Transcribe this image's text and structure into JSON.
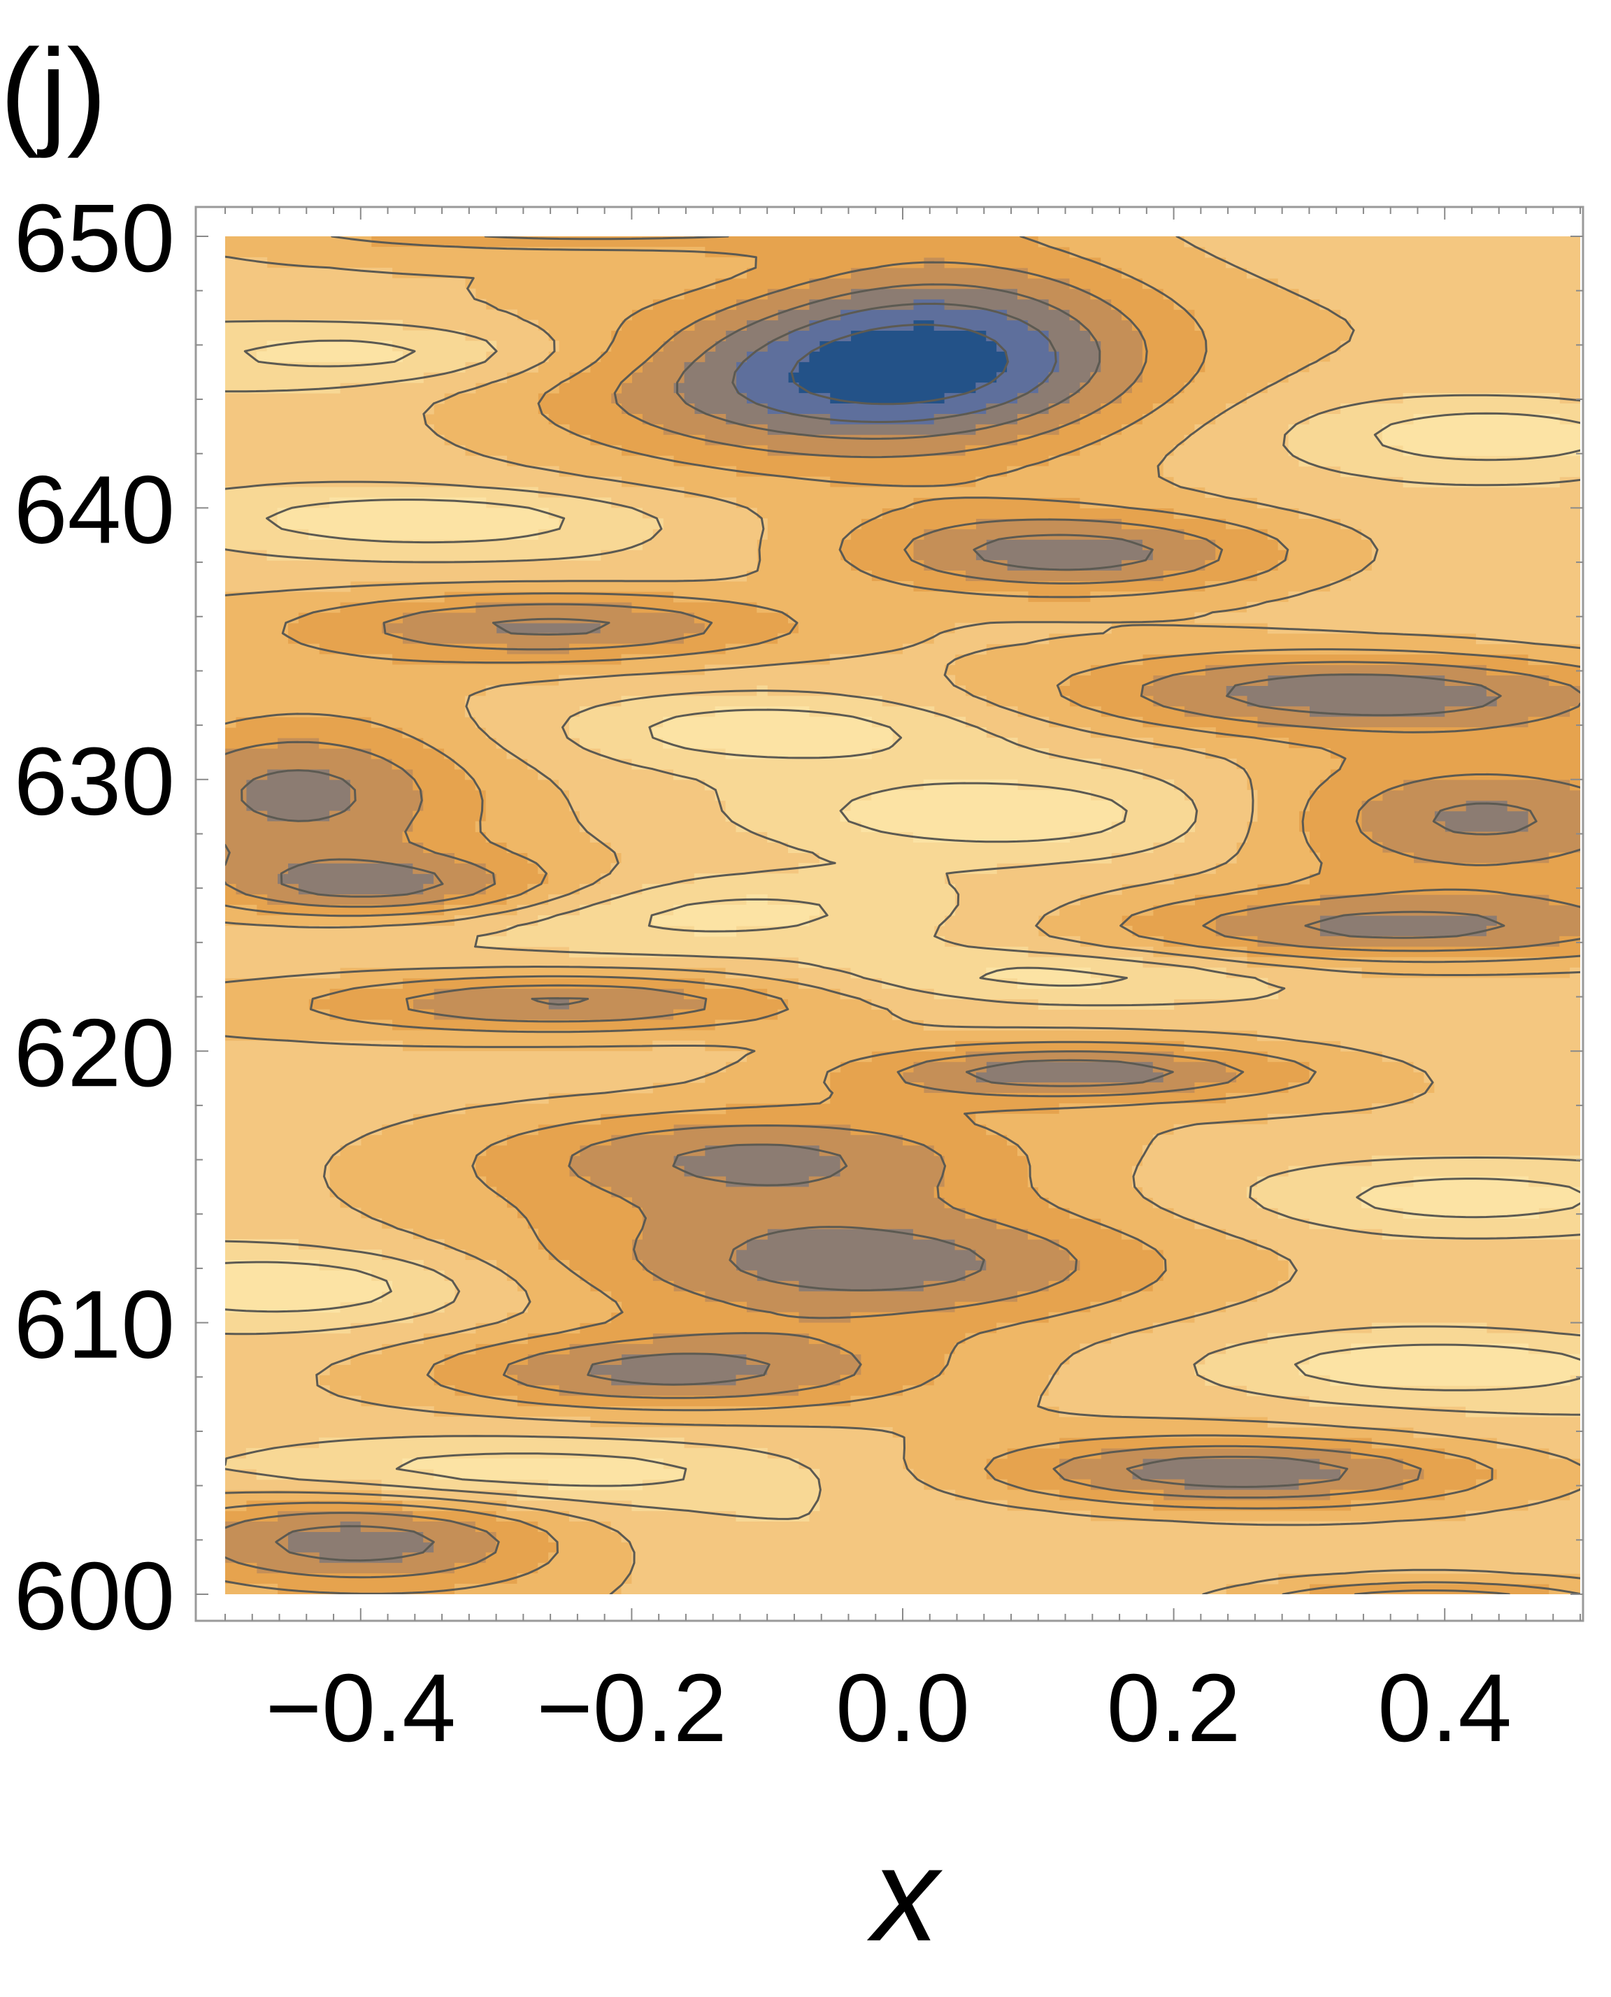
{
  "panel_label": "(j)",
  "chart_data": {
    "type": "contour",
    "title": "",
    "panel_label": "(j)",
    "xlabel": "x",
    "ylabel": "",
    "xlim": [
      -0.5,
      0.5
    ],
    "ylim": [
      600,
      650
    ],
    "x_ticks": [
      {
        "value": -0.4,
        "label": "−0.4"
      },
      {
        "value": -0.2,
        "label": "−0.2"
      },
      {
        "value": 0.0,
        "label": "0.0"
      },
      {
        "value": 0.2,
        "label": "0.2"
      },
      {
        "value": 0.4,
        "label": "0.4"
      }
    ],
    "y_ticks": [
      {
        "value": 600,
        "label": "600"
      },
      {
        "value": 610,
        "label": "610"
      },
      {
        "value": 620,
        "label": "620"
      },
      {
        "value": 630,
        "label": "630"
      },
      {
        "value": 640,
        "label": "640"
      },
      {
        "value": 650,
        "label": "650"
      }
    ],
    "grid": false,
    "legend": "none",
    "colorscheme": [
      "#235288",
      "#5e6f9c",
      "#8c7c72",
      "#c58f57",
      "#e6a34e",
      "#efb766",
      "#f4c780",
      "#f8d895",
      "#fce3a4"
    ],
    "contour_line_color": "#5c5a52",
    "levels": 9,
    "features": [
      {
        "kind": "low",
        "x": 0.03,
        "y": 646.5,
        "rx": 0.15,
        "ry": 3.5
      },
      {
        "kind": "low",
        "x": -0.05,
        "y": 644.5,
        "rx": 0.22,
        "ry": 2.6
      },
      {
        "kind": "low",
        "x": 0.12,
        "y": 638.3,
        "rx": 0.16,
        "ry": 1.5
      },
      {
        "kind": "low",
        "x": -0.25,
        "y": 635.7,
        "rx": 0.18,
        "ry": 1.3
      },
      {
        "kind": "low",
        "x": 0.34,
        "y": 633.2,
        "rx": 0.22,
        "ry": 1.5
      },
      {
        "kind": "low",
        "x": 0.42,
        "y": 628.5,
        "rx": 0.16,
        "ry": 2.2
      },
      {
        "kind": "low",
        "x": 0.36,
        "y": 624.5,
        "rx": 0.22,
        "ry": 1.4
      },
      {
        "kind": "low",
        "x": -0.45,
        "y": 629.5,
        "rx": 0.13,
        "ry": 2.8
      },
      {
        "kind": "low",
        "x": -0.38,
        "y": 626.0,
        "rx": 0.14,
        "ry": 1.2
      },
      {
        "kind": "low",
        "x": -0.25,
        "y": 621.8,
        "rx": 0.18,
        "ry": 1.1
      },
      {
        "kind": "low",
        "x": 0.12,
        "y": 619.2,
        "rx": 0.16,
        "ry": 1.0
      },
      {
        "kind": "low",
        "x": -0.1,
        "y": 616.2,
        "rx": 0.2,
        "ry": 1.8
      },
      {
        "kind": "low",
        "x": -0.02,
        "y": 612.2,
        "rx": 0.22,
        "ry": 2.4
      },
      {
        "kind": "low",
        "x": -0.18,
        "y": 608.2,
        "rx": 0.18,
        "ry": 1.4
      },
      {
        "kind": "low",
        "x": 0.25,
        "y": 604.5,
        "rx": 0.18,
        "ry": 1.2
      },
      {
        "kind": "low",
        "x": -0.4,
        "y": 602.0,
        "rx": 0.15,
        "ry": 1.7
      },
      {
        "kind": "low",
        "x": 0.39,
        "y": 599.5,
        "rx": 0.13,
        "ry": 0.9
      },
      {
        "kind": "low",
        "x": -0.23,
        "y": 650.6,
        "rx": 0.2,
        "ry": 1.0
      },
      {
        "kind": "high",
        "x": -0.38,
        "y": 645.7,
        "rx": 0.15,
        "ry": 1.1
      },
      {
        "kind": "high",
        "x": -0.35,
        "y": 639.6,
        "rx": 0.15,
        "ry": 1.0
      },
      {
        "kind": "high",
        "x": 0.44,
        "y": 642.7,
        "rx": 0.12,
        "ry": 1.2
      },
      {
        "kind": "high",
        "x": -0.1,
        "y": 631.8,
        "rx": 0.14,
        "ry": 1.2
      },
      {
        "kind": "high",
        "x": 0.06,
        "y": 628.6,
        "rx": 0.17,
        "ry": 1.4
      },
      {
        "kind": "high",
        "x": -0.12,
        "y": 625.2,
        "rx": 0.2,
        "ry": 1.4
      },
      {
        "kind": "high",
        "x": 0.12,
        "y": 622.8,
        "rx": 0.16,
        "ry": 1.0
      },
      {
        "kind": "high",
        "x": 0.42,
        "y": 614.6,
        "rx": 0.15,
        "ry": 1.3
      },
      {
        "kind": "high",
        "x": -0.45,
        "y": 611.4,
        "rx": 0.13,
        "ry": 1.2
      },
      {
        "kind": "high",
        "x": 0.4,
        "y": 608.4,
        "rx": 0.14,
        "ry": 1.0
      },
      {
        "kind": "high",
        "x": -0.3,
        "y": 604.5,
        "rx": 0.2,
        "ry": 1.1
      }
    ]
  }
}
